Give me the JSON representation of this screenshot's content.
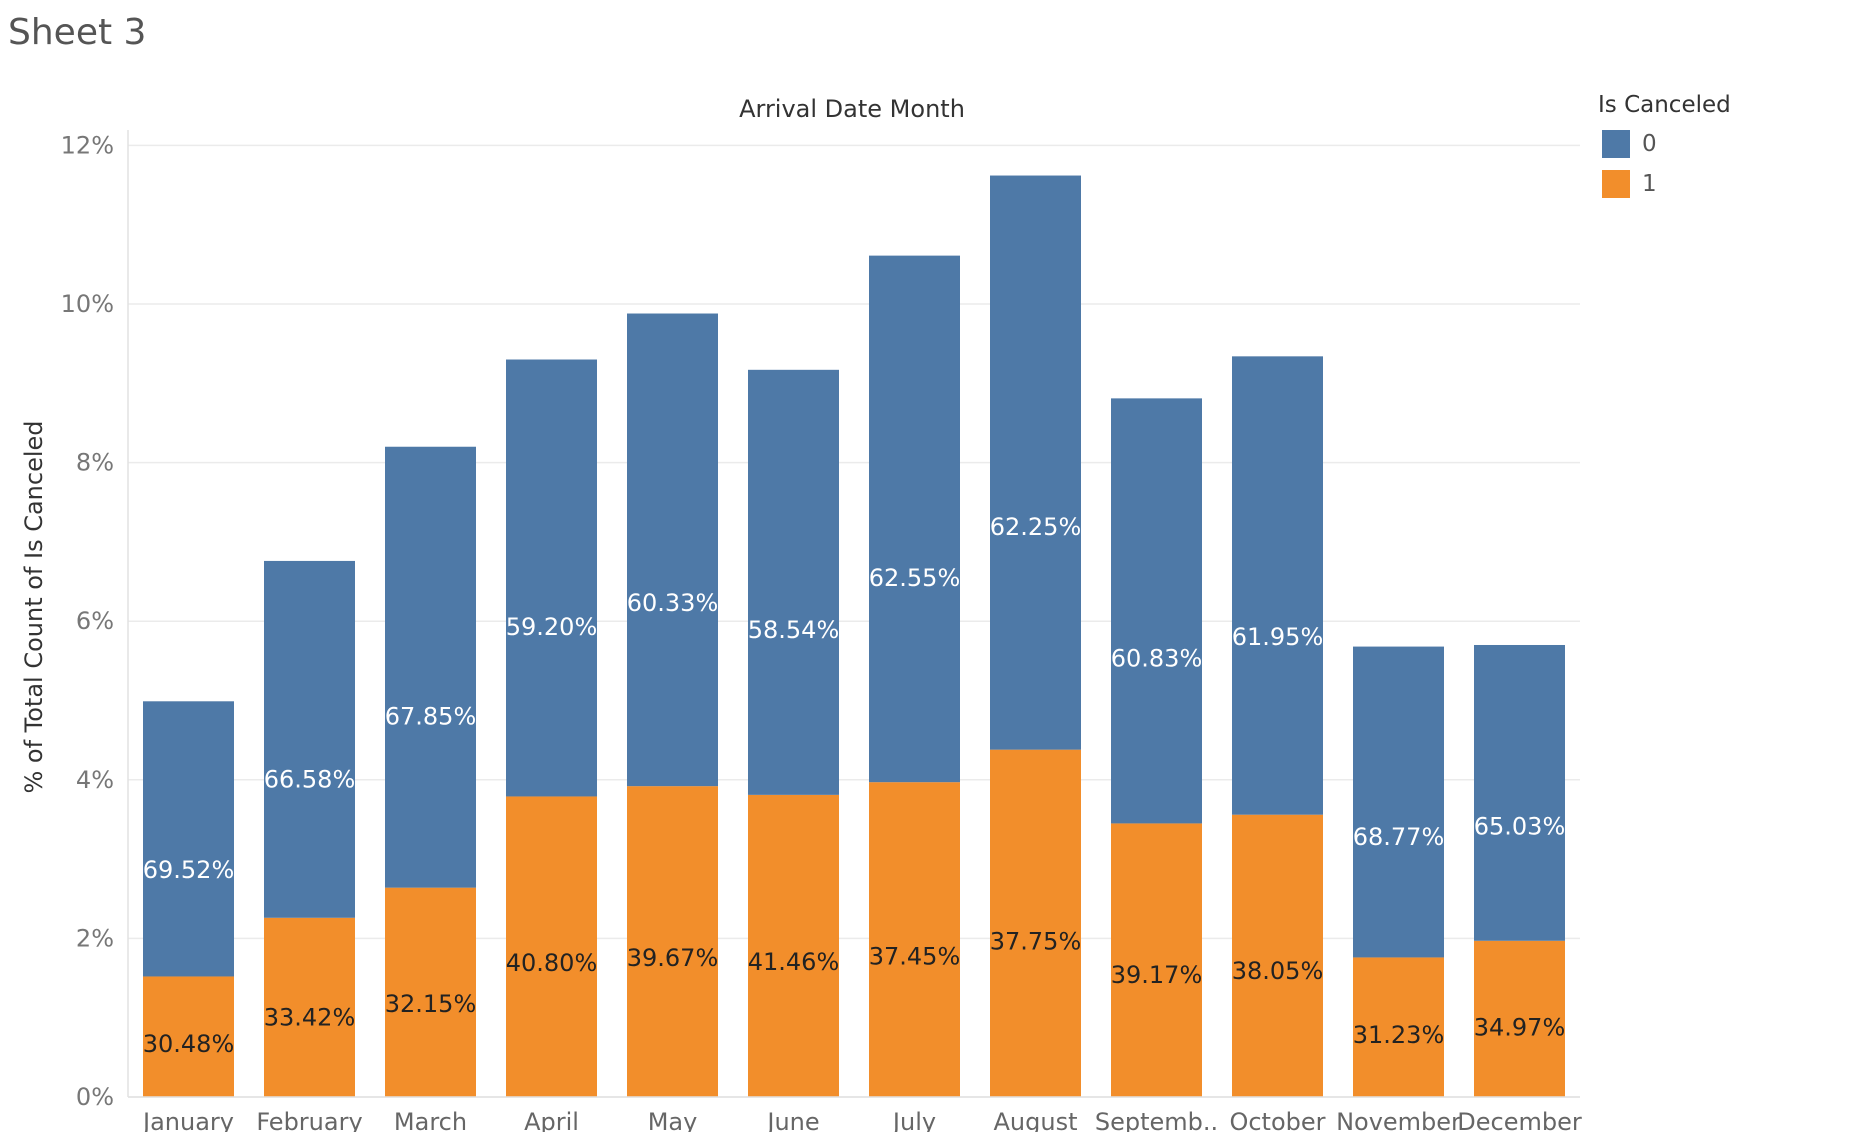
{
  "page": {
    "sheet_title": "Sheet 3"
  },
  "legend": {
    "title": "Is Canceled",
    "items": [
      {
        "label": "0",
        "color": "#4e79a7"
      },
      {
        "label": "1",
        "color": "#f28e2b"
      }
    ]
  },
  "chart_data": {
    "type": "bar",
    "stacked": true,
    "title": "Arrival Date Month",
    "xlabel": "",
    "ylabel": "% of Total Count of Is Canceled",
    "ylim": [
      0,
      12
    ],
    "yticks": [
      0,
      2,
      4,
      6,
      8,
      10,
      12
    ],
    "ytick_labels": [
      "0%",
      "2%",
      "4%",
      "6%",
      "8%",
      "10%",
      "12%"
    ],
    "grid": true,
    "legend_position": "top-right",
    "categories": [
      "January",
      "February",
      "March",
      "April",
      "May",
      "June",
      "July",
      "August",
      "Septemb..",
      "October",
      "November",
      "December"
    ],
    "series": [
      {
        "name": "1",
        "color": "#f28e2b",
        "values": [
          1.52,
          2.26,
          2.64,
          3.79,
          3.92,
          3.81,
          3.97,
          4.38,
          3.45,
          3.56,
          1.76,
          1.97
        ],
        "labels": [
          "30.48%",
          "33.42%",
          "32.15%",
          "40.80%",
          "39.67%",
          "41.46%",
          "37.45%",
          "37.75%",
          "39.17%",
          "38.05%",
          "31.23%",
          "34.97%"
        ]
      },
      {
        "name": "0",
        "color": "#4e79a7",
        "values": [
          3.47,
          4.5,
          5.56,
          5.51,
          5.96,
          5.36,
          6.64,
          7.24,
          5.36,
          5.78,
          3.92,
          3.73
        ],
        "labels": [
          "69.52%",
          "66.58%",
          "67.85%",
          "59.20%",
          "60.33%",
          "58.54%",
          "62.55%",
          "62.25%",
          "60.83%",
          "61.95%",
          "68.77%",
          "65.03%"
        ]
      }
    ]
  }
}
